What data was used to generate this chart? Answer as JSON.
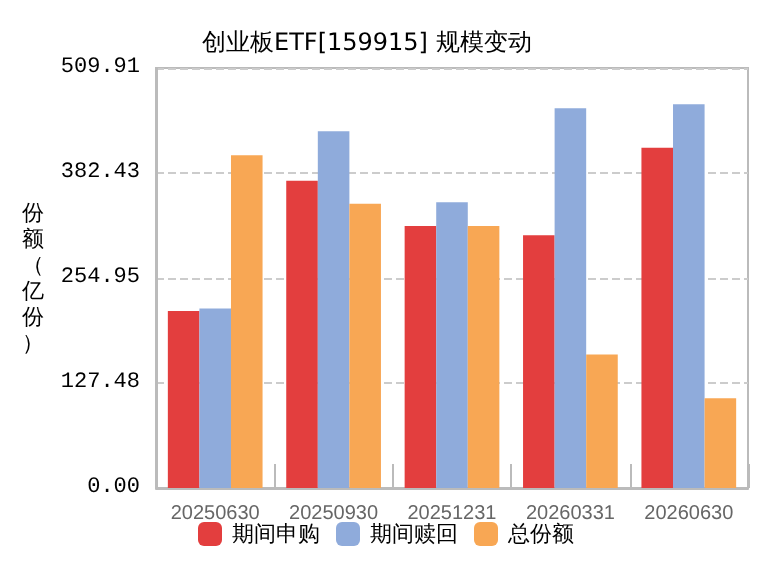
{
  "chart_data": {
    "type": "bar",
    "title": "创业板ETF[159915] 规模变动",
    "ylabel": "份额（亿份）",
    "categories": [
      "20250630",
      "20250930",
      "20251231",
      "20260331",
      "20260630"
    ],
    "series": [
      {
        "name": "期间申购",
        "color": "#e33e3e",
        "values": [
          215,
          373,
          318,
          307,
          413
        ]
      },
      {
        "name": "期间赎回",
        "color": "#8fabdb",
        "values": [
          218,
          433,
          347,
          461,
          466
        ]
      },
      {
        "name": "总份额",
        "color": "#f8a754",
        "values": [
          404,
          345,
          318,
          162,
          109
        ]
      }
    ],
    "ylim": [
      0,
      509.91
    ],
    "yticks": [
      {
        "value": 0,
        "label": "0.00"
      },
      127.48,
      254.95,
      382.43,
      509.91
    ],
    "grid": "y",
    "legend": "bottom"
  }
}
